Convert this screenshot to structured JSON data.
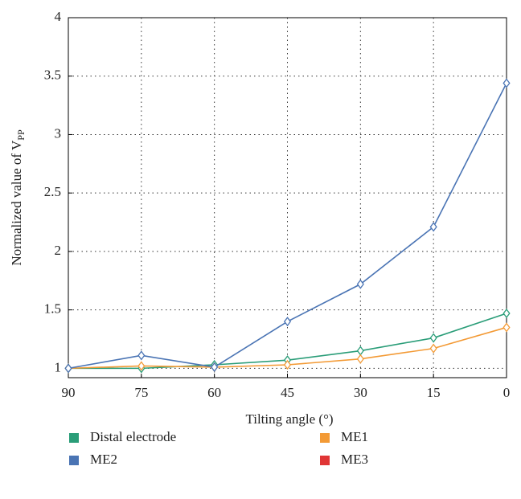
{
  "chart_data": {
    "type": "line",
    "xlabel": "Tilting angle (°)",
    "ylabel": "Normalized value of V",
    "ylabel_sub": "PP",
    "x": [
      90,
      75,
      60,
      45,
      30,
      15,
      0
    ],
    "xlim": [
      90,
      0
    ],
    "xticks": [
      90,
      75,
      60,
      45,
      30,
      15,
      0
    ],
    "ylim": [
      0.92,
      4
    ],
    "yticks": [
      1,
      1.5,
      2,
      2.5,
      3,
      3.5,
      4
    ],
    "grid": true,
    "legend": "bottom",
    "series": [
      {
        "name": "Distal electrode",
        "color": "#2a9d78",
        "values": [
          1,
          1.0,
          1.03,
          1.07,
          1.15,
          1.26,
          1.47
        ]
      },
      {
        "name": "ME1",
        "color": "#f39a35",
        "values": [
          1,
          1.02,
          1.01,
          1.03,
          1.08,
          1.17,
          1.35
        ]
      },
      {
        "name": "ME2",
        "color": "#4a74b4",
        "values": [
          1,
          1.11,
          1.01,
          1.4,
          1.72,
          2.21,
          3.44
        ]
      },
      {
        "name": "ME3",
        "color": "#e03535",
        "values": [
          null,
          null,
          null,
          null,
          null,
          null,
          null
        ]
      }
    ]
  }
}
